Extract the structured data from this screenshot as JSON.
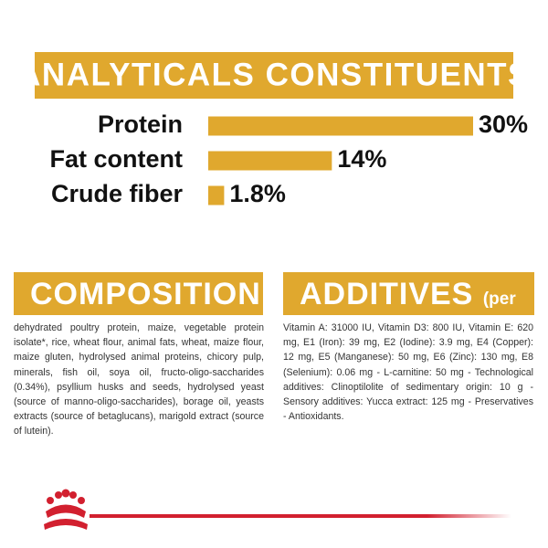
{
  "chart_data": {
    "type": "bar",
    "orientation": "horizontal",
    "title": "ANALYTICALS CONSTITUENTS",
    "categories": [
      "Protein",
      "Fat content",
      "Crude fiber"
    ],
    "values": [
      30,
      14,
      1.8
    ],
    "value_labels": [
      "30%",
      "14%",
      "1.8%"
    ],
    "color": "#e0a82e",
    "xlim": [
      0,
      30
    ]
  },
  "composition": {
    "title": "COMPOSITION",
    "text": "dehydrated poultry protein, maize, vegetable protein isolate*, rice, wheat flour, animal fats, wheat, maize flour, maize gluten, hydrolysed animal proteins, chicory pulp, minerals, fish oil, soya oil, fructo-oligo-saccharides (0.34%), psyllium husks and seeds, hydrolysed yeast (source of manno-oligo-saccharides), borage oil, yeasts extracts (source of betaglucans), marigold extract (source of lutein)."
  },
  "additives": {
    "title": "ADDITIVES",
    "unit": "(per kg)",
    "text": "Vitamin A: 31000 IU, Vitamin D3: 800 IU, Vitamin E: 620 mg, E1 (Iron): 39 mg, E2 (Iodine): 3.9 mg, E4 (Copper): 12 mg, E5 (Manganese): 50 mg, E6 (Zinc): 130 mg, E8 (Selenium): 0.06 mg - L-carnitine: 50 mg - Technological additives: Clinoptilolite of sedimentary origin: 10 g - Sensory additives: Yucca extract: 125 mg - Preservatives - Antioxidants."
  }
}
